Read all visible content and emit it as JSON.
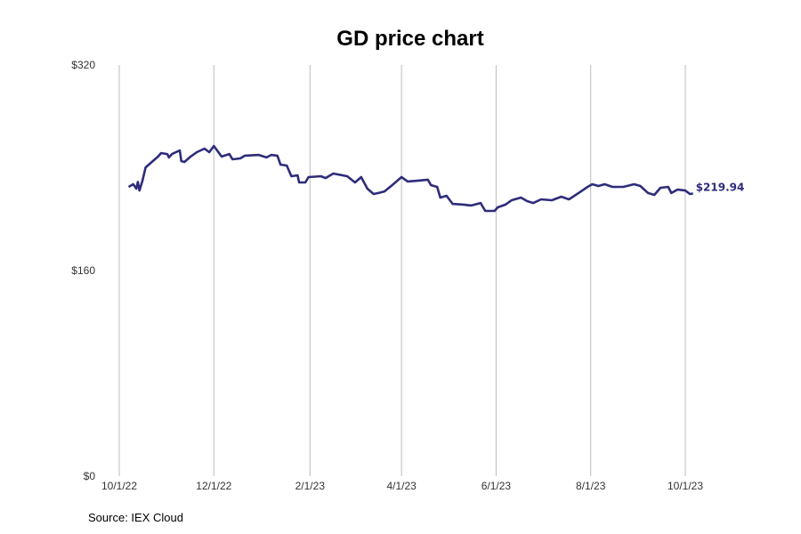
{
  "chart_data": {
    "type": "line",
    "title": "GD price chart",
    "xlabel": "",
    "ylabel": "",
    "ylim": [
      0,
      320
    ],
    "xlim_days": [
      0,
      365
    ],
    "x_origin_date": "10/1/22",
    "grid": "vertical",
    "x_ticks": [
      {
        "label": "10/1/22",
        "day": 0
      },
      {
        "label": "12/1/22",
        "day": 61
      },
      {
        "label": "2/1/23",
        "day": 123
      },
      {
        "label": "4/1/23",
        "day": 182
      },
      {
        "label": "6/1/23",
        "day": 243
      },
      {
        "label": "8/1/23",
        "day": 304
      },
      {
        "label": "10/1/23",
        "day": 365
      }
    ],
    "y_ticks": [
      {
        "label": "$0",
        "value": 0
      },
      {
        "label": "$160",
        "value": 160
      },
      {
        "label": "$320",
        "value": 320
      }
    ],
    "series": [
      {
        "name": "GD",
        "color": "#2e2c7a",
        "points": [
          [
            6,
            225.1
          ],
          [
            9,
            227.2
          ],
          [
            11,
            223.7
          ],
          [
            12,
            229
          ],
          [
            13,
            222.3
          ],
          [
            15,
            230
          ],
          [
            17,
            240.3
          ],
          [
            21,
            244.5
          ],
          [
            25,
            248.7
          ],
          [
            27,
            251.4
          ],
          [
            31,
            250.7
          ],
          [
            32,
            248
          ],
          [
            34,
            250.7
          ],
          [
            39,
            253.5
          ],
          [
            40,
            245.2
          ],
          [
            42,
            244.5
          ],
          [
            46,
            248.7
          ],
          [
            50,
            252.1
          ],
          [
            55,
            254.9
          ],
          [
            58,
            252.1
          ],
          [
            61,
            257
          ],
          [
            66,
            248.7
          ],
          [
            71,
            250.7
          ],
          [
            73,
            246.6
          ],
          [
            78,
            247.3
          ],
          [
            81,
            249.4
          ],
          [
            90,
            250
          ],
          [
            95,
            248
          ],
          [
            98,
            250
          ],
          [
            102,
            249.4
          ],
          [
            104,
            242.4
          ],
          [
            108,
            241.7
          ],
          [
            111,
            233.4
          ],
          [
            115,
            234.1
          ],
          [
            116,
            228.6
          ],
          [
            120,
            228.6
          ],
          [
            122,
            232.7
          ],
          [
            130,
            233.4
          ],
          [
            133,
            232
          ],
          [
            138,
            235.5
          ],
          [
            147,
            233.4
          ],
          [
            152,
            228.6
          ],
          [
            156,
            232.7
          ],
          [
            160,
            223.7
          ],
          [
            164,
            219.6
          ],
          [
            167,
            220.3
          ],
          [
            171,
            221.6
          ],
          [
            176,
            226.5
          ],
          [
            182,
            232.7
          ],
          [
            186,
            229.3
          ],
          [
            193,
            230
          ],
          [
            199,
            230.7
          ],
          [
            201,
            226.5
          ],
          [
            205,
            225.1
          ],
          [
            207,
            216.8
          ],
          [
            211,
            218.2
          ],
          [
            215,
            211.9
          ],
          [
            222,
            211.3
          ],
          [
            227,
            210.6
          ],
          [
            233,
            212.6
          ],
          [
            236,
            206.4
          ],
          [
            242,
            206.4
          ],
          [
            244,
            209.2
          ],
          [
            249,
            211.3
          ],
          [
            253,
            214.7
          ],
          [
            259,
            216.8
          ],
          [
            263,
            214
          ],
          [
            267,
            212.6
          ],
          [
            272,
            215.4
          ],
          [
            279,
            214.7
          ],
          [
            285,
            217.5
          ],
          [
            290,
            215.4
          ],
          [
            297,
            221
          ],
          [
            302,
            225.1
          ],
          [
            305,
            227.2
          ],
          [
            309,
            225.8
          ],
          [
            313,
            227.2
          ],
          [
            318,
            225.1
          ],
          [
            325,
            225.1
          ],
          [
            332,
            227.2
          ],
          [
            336,
            225.8
          ],
          [
            341,
            220.3
          ],
          [
            345,
            218.9
          ],
          [
            349,
            224.4
          ],
          [
            354,
            225.1
          ],
          [
            356,
            220.3
          ],
          [
            360,
            223
          ],
          [
            365,
            222.3
          ],
          [
            368,
            219.6
          ],
          [
            370,
            219.94
          ]
        ]
      }
    ],
    "last_value_label": "$219.94"
  },
  "source": "Source: IEX Cloud"
}
